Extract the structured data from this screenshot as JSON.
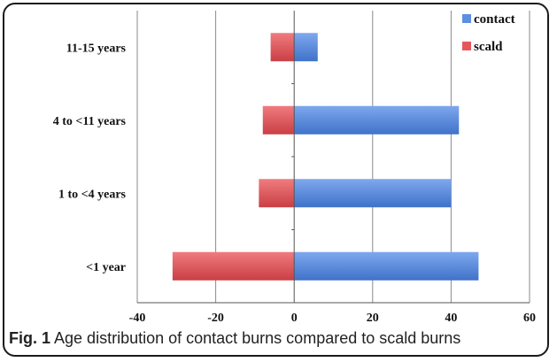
{
  "caption": {
    "label": "Fig. 1",
    "text": "Age distribution of contact burns compared to scald burns"
  },
  "colors": {
    "contact": "#5b8fe0",
    "contact_dark": "#3f72c9",
    "scald": "#e4585c",
    "scald_dark": "#c93f44",
    "grid": "#8a8a8a",
    "axis": "#555555"
  },
  "chart_data": {
    "type": "bar",
    "orientation": "horizontal",
    "stacked": true,
    "categories": [
      "11-15 years",
      "4 to <11 years",
      "1 to <4 years",
      "<1 year"
    ],
    "series": [
      {
        "name": "contact",
        "values": [
          6,
          42,
          40,
          47
        ]
      },
      {
        "name": "scald",
        "values": [
          -6,
          -8,
          -9,
          -31
        ]
      }
    ],
    "xlim": [
      -40,
      60
    ],
    "xticks": [
      -40,
      -20,
      0,
      20,
      40,
      60
    ],
    "xlabel": "",
    "ylabel": "",
    "title": "",
    "grid": true,
    "legend": "top-right"
  }
}
